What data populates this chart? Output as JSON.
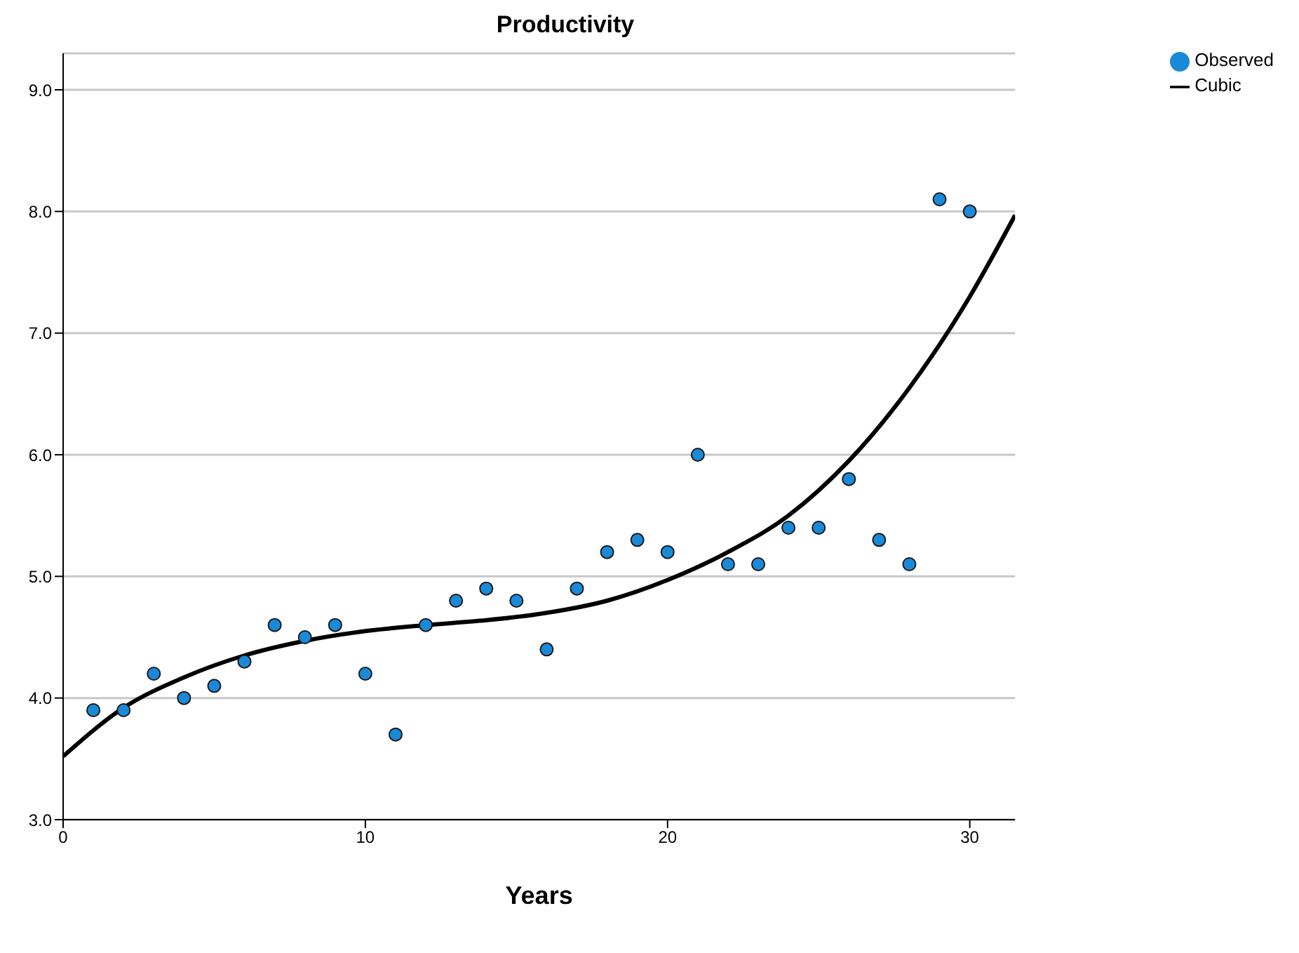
{
  "chart_data": {
    "type": "scatter",
    "title": "Productivity",
    "xlabel": "Years",
    "xlim": [
      0,
      31.5
    ],
    "xticks": [
      0,
      10,
      20,
      30
    ],
    "ylim": [
      3,
      9.3
    ],
    "yticks": [
      {
        "value": 3,
        "label": "3.0"
      },
      {
        "value": 4,
        "label": "4.0"
      },
      {
        "value": 5,
        "label": "5.0"
      },
      {
        "value": 6,
        "label": "6.0"
      },
      {
        "value": 7,
        "label": "7.0"
      },
      {
        "value": 8,
        "label": "8.0"
      },
      {
        "value": 9,
        "label": "9.0"
      }
    ],
    "grid": "y",
    "legend": "top right",
    "series": [
      {
        "name": "Observed",
        "marker": "circle",
        "color": "#1a8ad8",
        "x": [
          1,
          2,
          3,
          4,
          5,
          6,
          7,
          8,
          9,
          10,
          11,
          12,
          13,
          14,
          15,
          16,
          17,
          18,
          19,
          20,
          21,
          22,
          23,
          24,
          25,
          26,
          27,
          28,
          29,
          30
        ],
        "values": [
          3.9,
          3.9,
          4.2,
          4.0,
          4.1,
          4.3,
          4.6,
          4.5,
          4.6,
          4.2,
          3.7,
          4.6,
          4.8,
          4.9,
          4.8,
          4.4,
          4.9,
          5.2,
          5.3,
          5.2,
          6.0,
          5.1,
          5.1,
          5.4,
          5.4,
          5.8,
          5.3,
          5.1,
          8.1,
          8.0
        ]
      },
      {
        "name": "Cubic",
        "type": "line",
        "marker": "none",
        "color": "#000000",
        "x": [
          0,
          2,
          4,
          6,
          8,
          10,
          12,
          14,
          16,
          18,
          20,
          22,
          24,
          26,
          28,
          30,
          31.5
        ],
        "values": [
          3.52,
          3.92,
          4.17,
          4.35,
          4.47,
          4.55,
          4.6,
          4.64,
          4.7,
          4.8,
          4.97,
          5.2,
          5.5,
          5.95,
          6.55,
          7.3,
          7.97
        ]
      }
    ]
  }
}
